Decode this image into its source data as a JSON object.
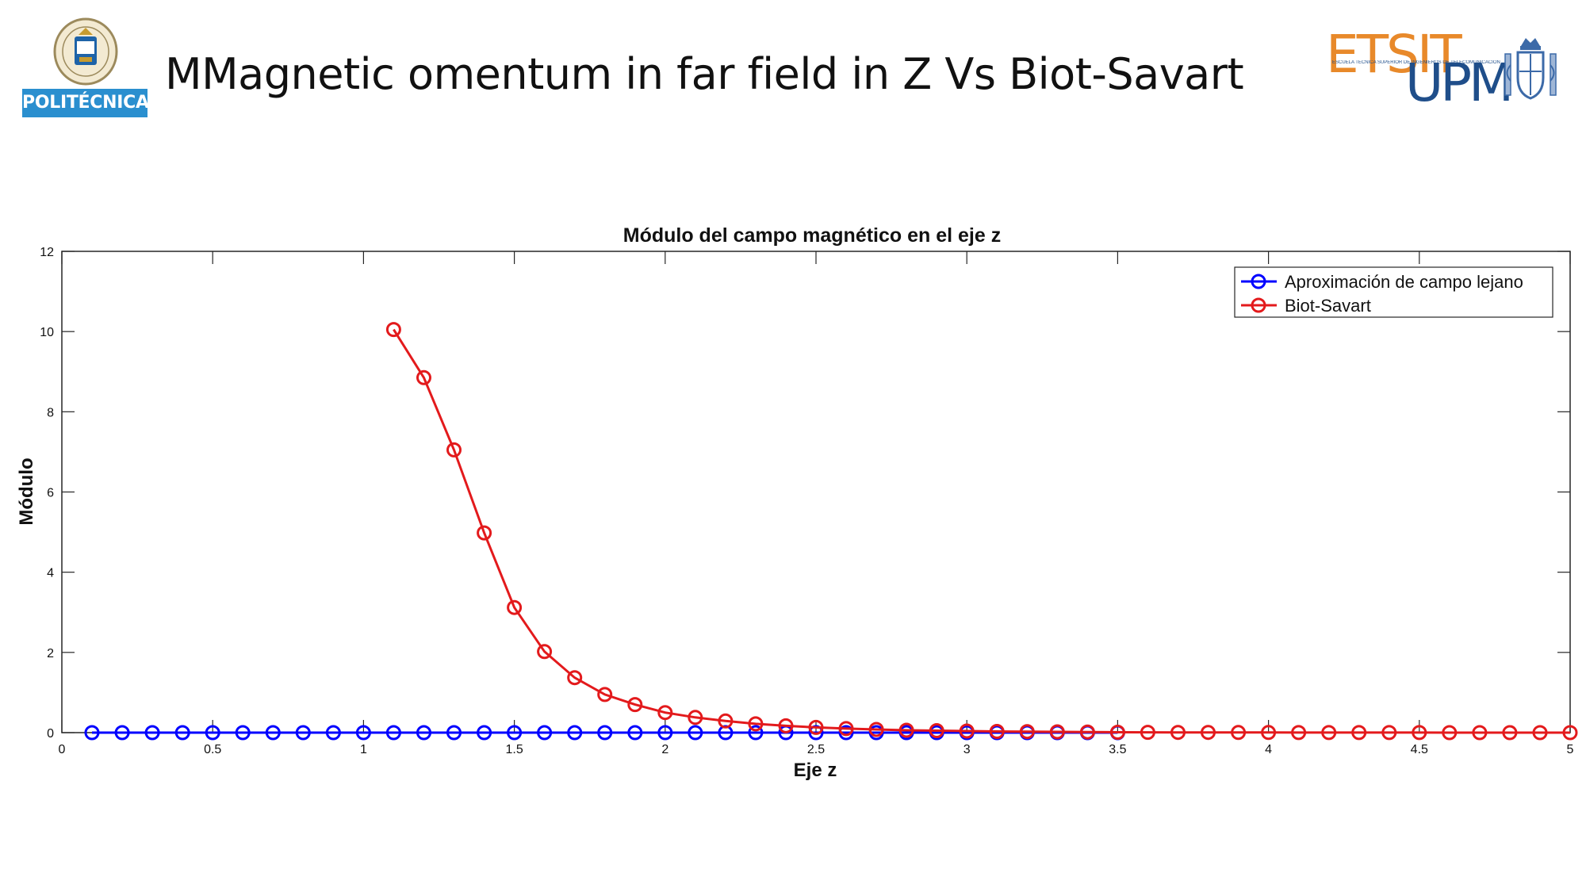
{
  "slide": {
    "title": "MMagnetic omentum in far field in Z Vs Biot-Savart"
  },
  "logos": {
    "left_banner": "POLITÉCNICA",
    "right_top": "ETSIT",
    "right_bottom": "UPM",
    "right_small": "ESCUELA TÉCNICA SUPERIOR DE INGENIEROS DE TELECOMUNICACIÓN",
    "left_icon": "university-crest-icon",
    "right_icon": "royal-crest-icon"
  },
  "chart_data": {
    "type": "line",
    "title": "Módulo del campo magnético en el eje z",
    "xlabel": "Eje z",
    "ylabel": "Módulo",
    "xlim": [
      0,
      5
    ],
    "ylim": [
      0,
      12
    ],
    "xticks": [
      "0",
      "0.5",
      "1",
      "1.5",
      "2",
      "2.5",
      "3",
      "3.5",
      "4",
      "4.5",
      "5"
    ],
    "yticks": [
      "0",
      "2",
      "4",
      "6",
      "8",
      "10",
      "12"
    ],
    "grid": false,
    "legend_position": "top-right",
    "marker": "circle",
    "series": [
      {
        "name": "Aproximación de campo lejano",
        "color": "#0000ff",
        "x": [
          0.1,
          0.2,
          0.3,
          0.4,
          0.5,
          0.6,
          0.7,
          0.8,
          0.9,
          1.0,
          1.1,
          1.2,
          1.3,
          1.4,
          1.5,
          1.6,
          1.7,
          1.8,
          1.9,
          2.0,
          2.1,
          2.2,
          2.3,
          2.4,
          2.5,
          2.6,
          2.7,
          2.8,
          2.9,
          3.0,
          3.1,
          3.2,
          3.3,
          3.4,
          3.5
        ],
        "y": [
          0,
          0,
          0,
          0,
          0,
          0,
          0,
          0,
          0,
          0,
          0,
          0,
          0,
          0,
          0,
          0,
          0,
          0,
          0,
          0,
          0,
          0,
          0,
          0,
          0,
          0,
          0,
          0,
          0,
          0,
          0,
          0,
          0,
          0,
          0
        ]
      },
      {
        "name": "Biot-Savart",
        "color": "#e31a1c",
        "x": [
          1.1,
          1.2,
          1.3,
          1.4,
          1.5,
          1.6,
          1.7,
          1.8,
          1.9,
          2.0,
          2.1,
          2.2,
          2.3,
          2.4,
          2.5,
          2.6,
          2.7,
          2.8,
          2.9,
          3.0,
          3.1,
          3.2,
          3.3,
          3.4,
          3.5,
          3.6,
          3.7,
          3.8,
          3.9,
          4.0,
          4.1,
          4.2,
          4.3,
          4.4,
          4.5,
          4.6,
          4.7,
          4.8,
          4.9,
          5.0
        ],
        "y": [
          10.05,
          8.85,
          7.05,
          4.98,
          3.12,
          2.02,
          1.37,
          0.95,
          0.7,
          0.5,
          0.38,
          0.29,
          0.22,
          0.17,
          0.13,
          0.1,
          0.08,
          0.06,
          0.05,
          0.04,
          0.03,
          0.025,
          0.02,
          0.015,
          0.01,
          0.008,
          0.006,
          0.005,
          0.004,
          0.003,
          0.002,
          0.002,
          0.001,
          0.001,
          0.001,
          0,
          0,
          0,
          0,
          0
        ]
      }
    ]
  }
}
